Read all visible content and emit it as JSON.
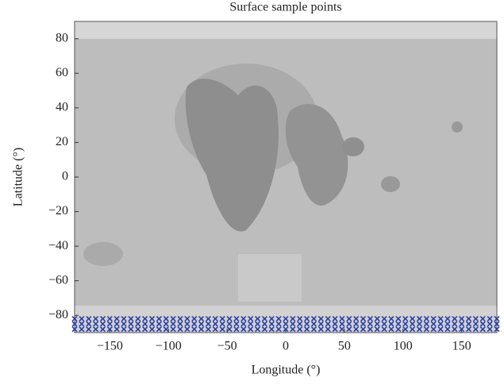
{
  "chart_data": {
    "type": "scatter",
    "title": "Surface sample points",
    "x_label": "Longitude (°)",
    "y_label": "Latitude (°)",
    "color": "#2b3fa8",
    "xlim": [
      -180,
      180
    ],
    "ylim": [
      -90,
      90
    ],
    "xticks": [
      {
        "value": -150,
        "label": "−150"
      },
      {
        "value": -100,
        "label": "−100"
      },
      {
        "value": -50,
        "label": "−50"
      },
      0,
      50,
      100,
      150
    ],
    "yticks": [
      {
        "value": -80,
        "label": "−80"
      },
      {
        "value": -60,
        "label": "−60"
      },
      {
        "value": -40,
        "label": "−40"
      },
      {
        "value": -20,
        "label": "−20"
      },
      0,
      20,
      40,
      60,
      80
    ],
    "x": [
      -180,
      -174,
      -168,
      -162,
      -156,
      -150,
      -144,
      -138,
      -132,
      -126,
      -120,
      -114,
      -108,
      -102,
      -96,
      -90,
      -84,
      -78,
      -72,
      -66,
      -60,
      -54,
      -48,
      -42,
      -36,
      -30,
      -24,
      -18,
      -12,
      -6,
      0,
      6,
      12,
      18,
      24,
      30,
      36,
      42,
      48,
      54,
      60,
      66,
      72,
      78,
      84,
      90,
      96,
      102,
      108,
      114,
      120,
      126,
      132,
      138,
      144,
      150,
      156,
      162,
      168,
      174,
      180,
      -180,
      -174,
      -168,
      -162,
      -156,
      -150,
      -144,
      -138,
      -132,
      -126,
      -120,
      -114,
      -108,
      -102,
      -96,
      -90,
      -84,
      -78,
      -72,
      -66,
      -60,
      -54,
      -48,
      -42,
      -36,
      -30,
      -24,
      -18,
      -12,
      -6,
      0,
      6,
      12,
      18,
      24,
      30,
      36,
      42,
      48,
      54,
      60,
      66,
      72,
      78,
      84,
      90,
      96,
      102,
      108,
      114,
      120,
      126,
      132,
      138,
      144,
      150,
      156,
      162,
      168,
      174,
      180,
      -180,
      -174,
      -168,
      -162,
      -156,
      -150,
      -144,
      -138,
      -132,
      -126,
      -120,
      -114,
      -108,
      -102,
      -96,
      -90,
      -84,
      -78,
      -72,
      -66,
      -60,
      -54,
      -48,
      -42,
      -36,
      -30,
      -24,
      -18,
      -12,
      -6,
      0,
      6,
      12,
      18,
      24,
      30,
      36,
      42,
      48,
      54,
      60,
      66,
      72,
      78,
      84,
      90,
      96,
      102,
      108,
      114,
      120,
      126,
      132,
      138,
      144,
      150,
      156,
      162,
      168,
      174,
      180
    ],
    "y": [
      -82,
      -82,
      -82,
      -82,
      -82,
      -82,
      -82,
      -82,
      -82,
      -82,
      -82,
      -82,
      -82,
      -82,
      -82,
      -82,
      -82,
      -82,
      -82,
      -82,
      -82,
      -82,
      -82,
      -82,
      -82,
      -82,
      -82,
      -82,
      -82,
      -82,
      -82,
      -82,
      -82,
      -82,
      -82,
      -82,
      -82,
      -82,
      -82,
      -82,
      -82,
      -82,
      -82,
      -82,
      -82,
      -82,
      -82,
      -82,
      -82,
      -82,
      -82,
      -82,
      -82,
      -82,
      -82,
      -82,
      -82,
      -82,
      -82,
      -82,
      -82,
      -85,
      -85,
      -85,
      -85,
      -85,
      -85,
      -85,
      -85,
      -85,
      -85,
      -85,
      -85,
      -85,
      -85,
      -85,
      -85,
      -85,
      -85,
      -85,
      -85,
      -85,
      -85,
      -85,
      -85,
      -85,
      -85,
      -85,
      -85,
      -85,
      -85,
      -85,
      -85,
      -85,
      -85,
      -85,
      -85,
      -85,
      -85,
      -85,
      -85,
      -85,
      -85,
      -85,
      -85,
      -85,
      -85,
      -85,
      -85,
      -85,
      -85,
      -85,
      -85,
      -85,
      -85,
      -85,
      -85,
      -85,
      -85,
      -85,
      -85,
      -85,
      -88,
      -88,
      -88,
      -88,
      -88,
      -88,
      -88,
      -88,
      -88,
      -88,
      -88,
      -88,
      -88,
      -88,
      -88,
      -88,
      -88,
      -88,
      -88,
      -88,
      -88,
      -88,
      -88,
      -88,
      -88,
      -88,
      -88,
      -88,
      -88,
      -88,
      -88,
      -88,
      -88,
      -88,
      -88,
      -88,
      -88,
      -88,
      -88,
      -88,
      -88,
      -88,
      -88,
      -88,
      -88,
      -88,
      -88,
      -88,
      -88,
      -88,
      -88,
      -88,
      -88,
      -88,
      -88,
      -88,
      -88,
      -88,
      -88,
      -88,
      -88
    ]
  }
}
